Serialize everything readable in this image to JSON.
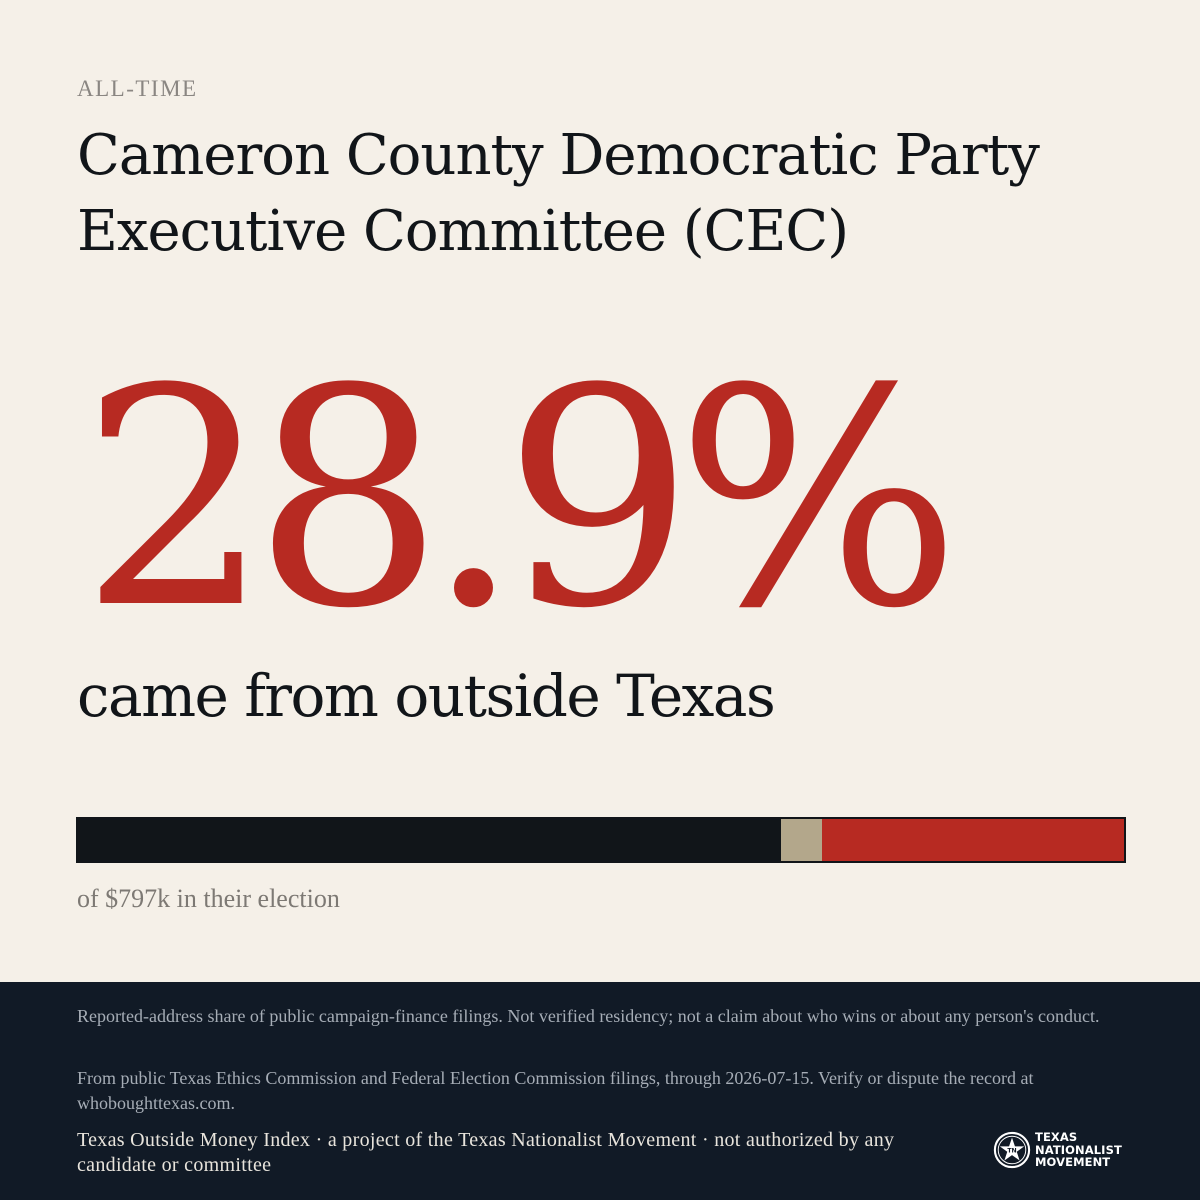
{
  "header": {
    "kicker": "ALL-TIME",
    "title_line1": "Cameron County Democratic Party",
    "title_line2": "Executive Committee (CEC)"
  },
  "stat": {
    "value": "28.9%",
    "description": "came from outside Texas"
  },
  "share_bar": {
    "segments": [
      {
        "key": "in-state",
        "fraction": 0.672,
        "color": "#111519"
      },
      {
        "key": "unknown",
        "fraction": 0.039,
        "color": "#b3a78b"
      },
      {
        "key": "outside-texas",
        "fraction": 0.289,
        "color": "#b72a22"
      }
    ],
    "caption": "of $797k in their election"
  },
  "footer": {
    "disclaimer": "Reported-address share of public campaign-finance filings. Not verified residency; not a claim about who wins or about any person's conduct.",
    "source": "From public Texas Ethics Commission and Federal Election Commission filings, through 2026-07-15. Verify or dispute the record at whoboughttexas.com.",
    "credit": "Texas Outside Money Index · a project of the Texas Nationalist Movement · not authorized by any candidate or committee",
    "logo": {
      "icon": "star-emblem-icon",
      "line1": "TEXAS",
      "line2": "NATIONALIST",
      "line3": "MOVEMENT"
    }
  }
}
